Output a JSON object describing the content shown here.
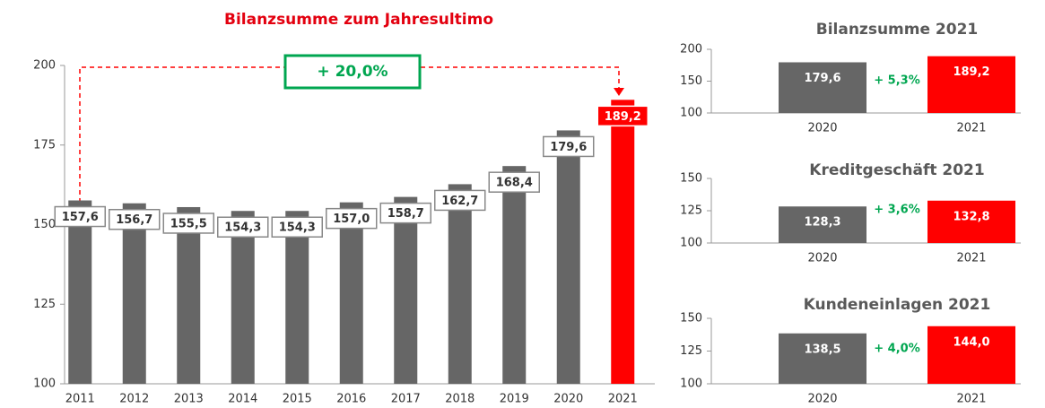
{
  "chart_data": [
    {
      "type": "bar",
      "title": "Bilanzsumme zum Jahresultimo",
      "categories": [
        "2011",
        "2012",
        "2013",
        "2014",
        "2015",
        "2016",
        "2017",
        "2018",
        "2019",
        "2020",
        "2021"
      ],
      "values": [
        157.6,
        156.7,
        155.5,
        154.3,
        154.3,
        157.0,
        158.7,
        162.7,
        168.4,
        179.6,
        189.2
      ],
      "value_labels": [
        "157,6",
        "156,7",
        "155,5",
        "154,3",
        "154,3",
        "157,0",
        "158,7",
        "162,7",
        "168,4",
        "179,6",
        "189,2"
      ],
      "colors": [
        "#666666",
        "#666666",
        "#666666",
        "#666666",
        "#666666",
        "#666666",
        "#666666",
        "#666666",
        "#666666",
        "#666666",
        "#ff0000"
      ],
      "ylim": [
        100,
        200
      ],
      "yticks": [
        100,
        125,
        150,
        175,
        200
      ],
      "annotation": "+ 20,0%"
    },
    {
      "type": "bar",
      "title": "Bilanzsumme 2021",
      "categories": [
        "2020",
        "2021"
      ],
      "values": [
        179.6,
        189.2
      ],
      "value_labels": [
        "179,6",
        "189,2"
      ],
      "colors": [
        "#666666",
        "#ff0000"
      ],
      "ylim": [
        100,
        200
      ],
      "yticks": [
        100,
        150,
        200
      ],
      "annotation": "+ 5,3%"
    },
    {
      "type": "bar",
      "title": "Kreditgeschäft 2021",
      "categories": [
        "2020",
        "2021"
      ],
      "values": [
        128.3,
        132.8
      ],
      "value_labels": [
        "128,3",
        "132,8"
      ],
      "colors": [
        "#666666",
        "#ff0000"
      ],
      "ylim": [
        100,
        150
      ],
      "yticks": [
        100,
        125,
        150
      ],
      "annotation": "+ 3,6%"
    },
    {
      "type": "bar",
      "title": "Kundeneinlagen 2021",
      "categories": [
        "2020",
        "2021"
      ],
      "values": [
        138.5,
        144.0
      ],
      "value_labels": [
        "138,5",
        "144,0"
      ],
      "colors": [
        "#666666",
        "#ff0000"
      ],
      "ylim": [
        100,
        150
      ],
      "yticks": [
        100,
        125,
        150
      ],
      "annotation": "+ 4,0%"
    }
  ]
}
